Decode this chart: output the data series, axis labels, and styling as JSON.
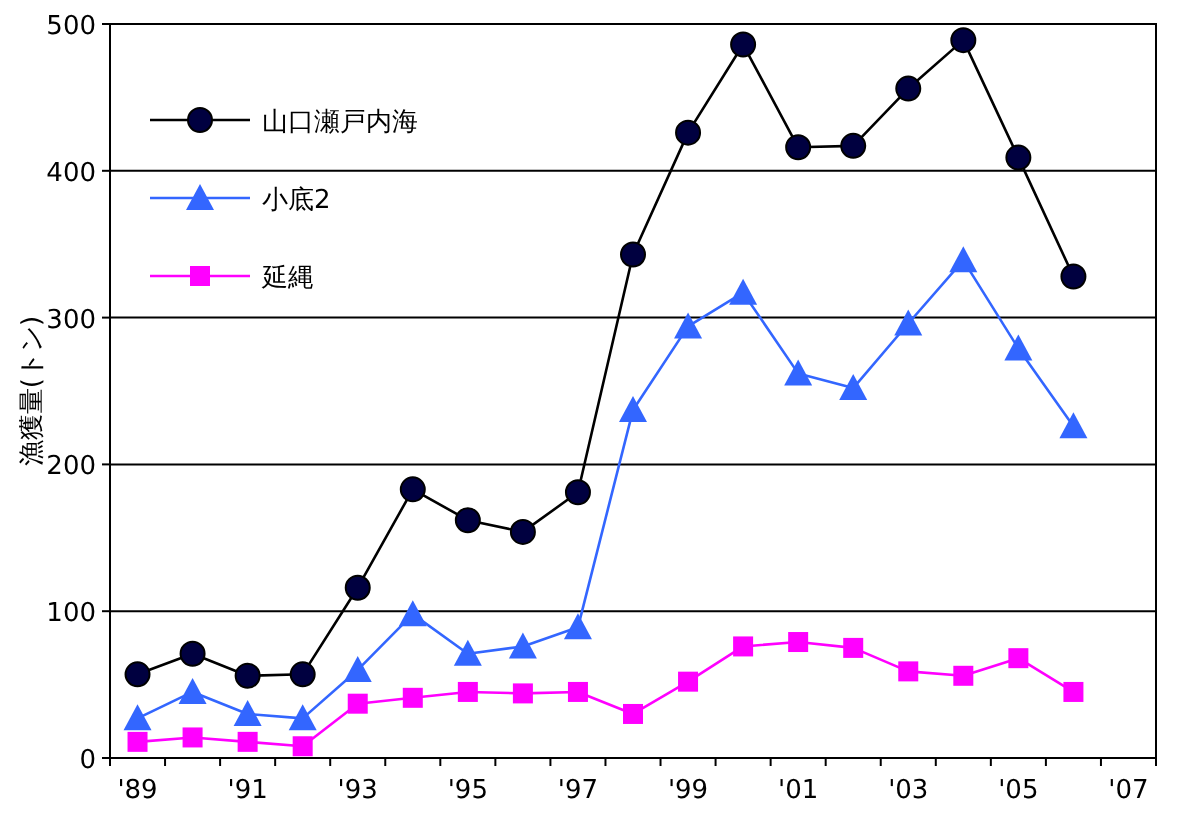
{
  "chart_data": {
    "type": "line",
    "ylabel": "漁獲量(トン)",
    "categories": [
      "'89",
      null,
      "'91",
      null,
      "'93",
      null,
      "'95",
      null,
      "'97",
      null,
      "'99",
      null,
      "'01",
      null,
      "'03",
      null,
      "'05",
      null,
      "'07"
    ],
    "series": [
      {
        "name": "山口瀬戸内海",
        "color": "#000040",
        "marker": "circle",
        "values": [
          57,
          71,
          56,
          57,
          116,
          183,
          162,
          154,
          181,
          343,
          426,
          486,
          416,
          417,
          456,
          489,
          409,
          328,
          null
        ]
      },
      {
        "name": "小底2",
        "color": "#3366ff",
        "marker": "triangle",
        "values": [
          27,
          45,
          30,
          27,
          60,
          98,
          71,
          76,
          89,
          237,
          294,
          317,
          262,
          252,
          296,
          339,
          279,
          226,
          null
        ]
      },
      {
        "name": "延縄",
        "color": "#ff00ff",
        "marker": "square",
        "values": [
          11,
          14,
          11,
          8,
          37,
          41,
          45,
          44,
          45,
          30,
          52,
          76,
          79,
          75,
          59,
          56,
          68,
          45,
          null
        ]
      }
    ],
    "ylim": [
      0,
      500
    ],
    "yticks": [
      0,
      100,
      200,
      300,
      400,
      500
    ],
    "grid": "y",
    "legend": "top left",
    "line_style": "solid"
  }
}
